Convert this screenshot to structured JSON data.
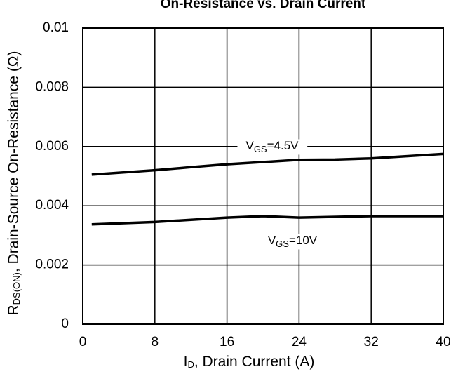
{
  "chart_data": {
    "type": "line",
    "title": "On-Resistance vs. Drain Current",
    "y_label": {
      "main": "R",
      "sub": "DS(ON)",
      "rest": ", Drain-Source On-Resistance (Ω)"
    },
    "x_label": {
      "main": "I",
      "sub": "D",
      "rest": ", Drain Current (A)"
    },
    "xlim": [
      0,
      40
    ],
    "xticks": [
      0,
      8,
      16,
      24,
      32,
      40
    ],
    "ylim": [
      0,
      0.01
    ],
    "yticks": [
      0,
      0.002,
      0.004,
      0.006,
      0.008,
      0.01
    ],
    "grid": true,
    "series": [
      {
        "color": "#000000",
        "label": {
          "main": "V",
          "sub": "GS",
          "rest": "=4.5V"
        },
        "x": [
          1,
          8,
          12,
          16,
          24,
          28,
          32,
          40
        ],
        "values": [
          0.00505,
          0.0052,
          0.0053,
          0.0054,
          0.00555,
          0.00556,
          0.0056,
          0.00575
        ]
      },
      {
        "color": "#000000",
        "label": {
          "main": "V",
          "sub": "GS",
          "rest": "=10V"
        },
        "x": [
          1,
          8,
          16,
          20,
          24,
          32,
          40
        ],
        "values": [
          0.00337,
          0.00345,
          0.0036,
          0.00365,
          0.0036,
          0.00365,
          0.00365
        ]
      }
    ]
  }
}
